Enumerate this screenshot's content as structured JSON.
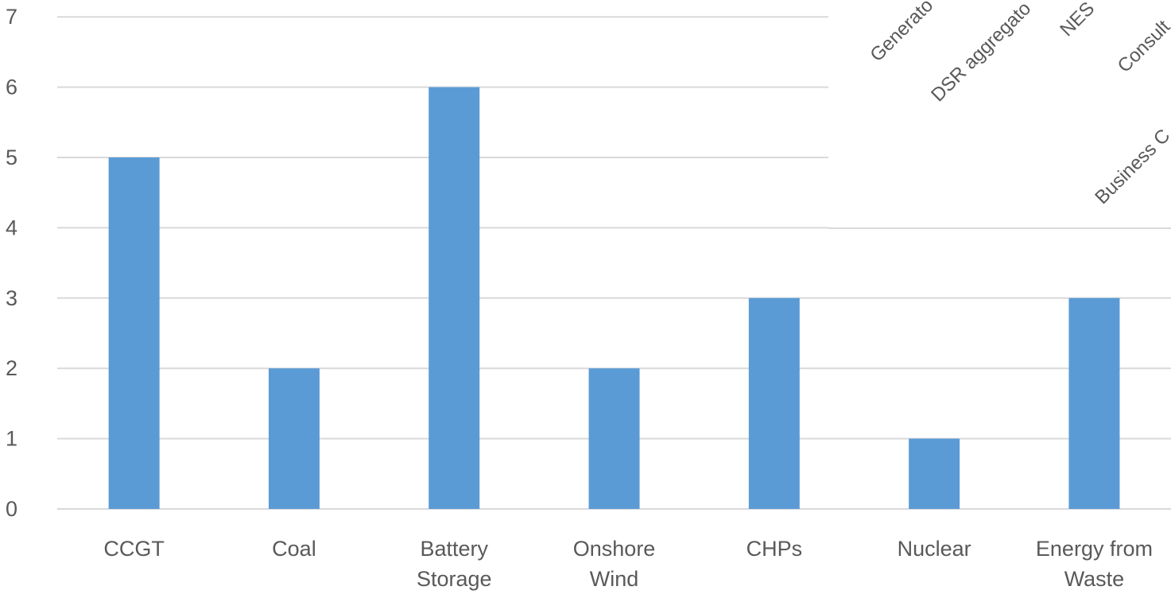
{
  "chart_data": {
    "type": "bar",
    "categories": [
      [
        "CCGT"
      ],
      [
        "Coal"
      ],
      [
        "Battery",
        "Storage"
      ],
      [
        "Onshore",
        "Wind"
      ],
      [
        "CHPs"
      ],
      [
        "Nuclear"
      ],
      [
        "Energy from",
        "Waste"
      ]
    ],
    "values": [
      5,
      2,
      6,
      2,
      3,
      1,
      3
    ],
    "yticks": [
      0,
      1,
      2,
      3,
      4,
      5,
      6,
      7
    ],
    "ylim": [
      0,
      7
    ],
    "title": "",
    "xlabel": "",
    "ylabel": "",
    "grid": true,
    "legend": "none",
    "bar_color": "#5B9BD5",
    "grid_color": "#D9D9D9",
    "text_color": "#595959",
    "overlapping_chart_labels": [
      "Generato",
      "DSR aggregato",
      "NES",
      "Consult",
      "Business C"
    ]
  }
}
